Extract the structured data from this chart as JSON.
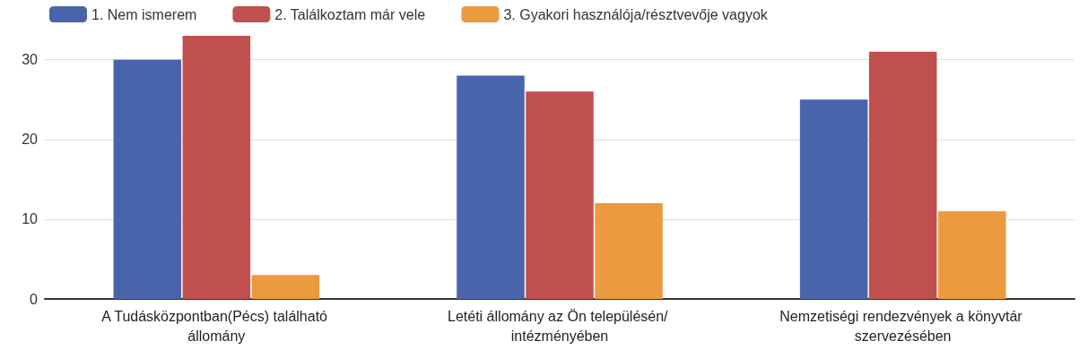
{
  "chart_data": {
    "type": "bar",
    "categories": [
      "A Tudásközpontban(Pécs) található állomány",
      "Letéti állomány az Ön településén/ intézményében",
      "Nemzetiségi rendezvények a könyvtár szervezésében"
    ],
    "series": [
      {
        "name": "1. Nem ismerem",
        "color": "#4a64ac",
        "values": [
          30,
          28,
          25
        ]
      },
      {
        "name": "2. Találkoztam már vele",
        "color": "#c0504d",
        "values": [
          33,
          26,
          31
        ]
      },
      {
        "name": "3. Gyakori használója/résztvevője vagyok",
        "color": "#ec9a40",
        "values": [
          3,
          12,
          11
        ]
      }
    ],
    "ylim": [
      0,
      33
    ],
    "yticks": [
      0,
      10,
      20,
      30
    ],
    "grid": "y",
    "legend": "top left"
  }
}
